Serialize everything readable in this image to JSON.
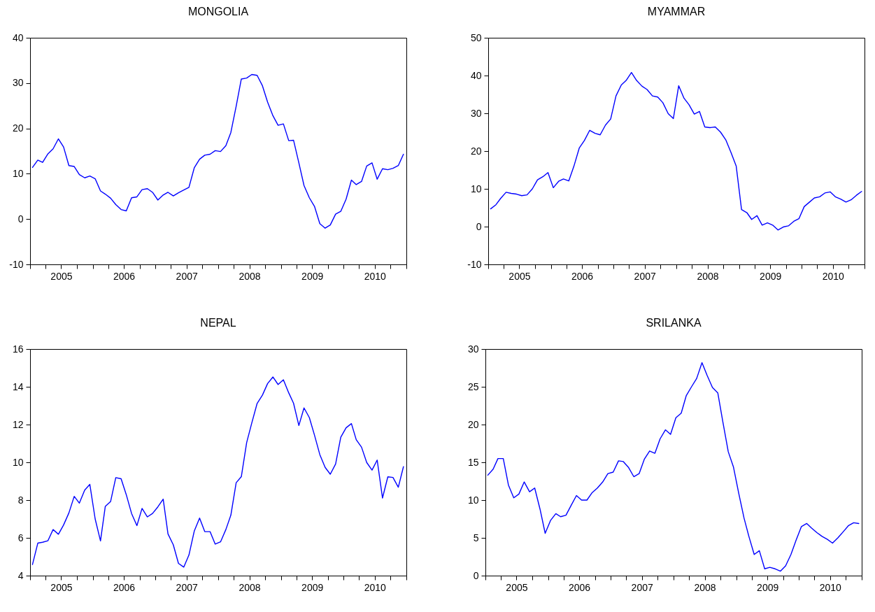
{
  "chart_data": [
    {
      "type": "line",
      "title": "MONGOLIA",
      "color": "#0000ff",
      "x": [
        "2005-01-15",
        "2005-02-15",
        "2005-03-15",
        "2005-04-15",
        "2005-05-15",
        "2005-06-15",
        "2005-07-15",
        "2005-08-15",
        "2005-09-15",
        "2005-10-15",
        "2005-11-15",
        "2005-12-15",
        "2006-01-15",
        "2006-02-15",
        "2006-03-15",
        "2006-04-15",
        "2006-05-15",
        "2006-06-15",
        "2006-07-15",
        "2006-08-15",
        "2006-09-15",
        "2006-10-15",
        "2006-11-15",
        "2006-12-15",
        "2007-01-15",
        "2007-02-15",
        "2007-03-15",
        "2007-04-15",
        "2007-05-15",
        "2007-06-15",
        "2007-07-15",
        "2007-08-15",
        "2007-09-15",
        "2007-10-15",
        "2007-11-15",
        "2007-12-15",
        "2008-01-15",
        "2008-02-15",
        "2008-03-15",
        "2008-04-15",
        "2008-05-15",
        "2008-06-15",
        "2008-07-15",
        "2008-08-15",
        "2008-09-15",
        "2008-10-15",
        "2008-11-15",
        "2008-12-15",
        "2009-01-15",
        "2009-02-15",
        "2009-03-15",
        "2009-04-15",
        "2009-05-15",
        "2009-06-15",
        "2009-07-15",
        "2009-08-15",
        "2009-09-15",
        "2009-10-15",
        "2009-11-15",
        "2009-12-15",
        "2010-01-15",
        "2010-02-15",
        "2010-03-15",
        "2010-04-15",
        "2010-05-15",
        "2010-06-15",
        "2010-07-15",
        "2010-08-15",
        "2010-09-15",
        "2010-10-15",
        "2010-11-15",
        "2010-12-15"
      ],
      "values": [
        11.4,
        13.0,
        12.5,
        14.4,
        15.5,
        17.7,
        15.9,
        11.8,
        11.6,
        9.8,
        9.1,
        9.5,
        8.9,
        6.2,
        5.5,
        4.6,
        3.2,
        2.1,
        1.8,
        4.7,
        4.9,
        6.5,
        6.7,
        5.9,
        4.2,
        5.3,
        5.9,
        5.1,
        5.8,
        6.4,
        7.0,
        11.3,
        13.2,
        14.1,
        14.3,
        15.1,
        14.9,
        16.2,
        19.1,
        24.9,
        30.9,
        31.1,
        31.9,
        31.7,
        29.4,
        25.8,
        22.8,
        20.7,
        21.0,
        17.3,
        17.4,
        12.4,
        7.4,
        4.7,
        2.8,
        -1.0,
        -2.0,
        -1.3,
        1.1,
        1.7,
        4.4,
        8.6,
        7.6,
        8.3,
        11.7,
        12.4,
        8.8,
        11.1,
        10.9,
        11.2,
        11.8,
        14.3
      ],
      "xlim": [
        "2005-01-01",
        "2011-01-01"
      ],
      "xticks": [
        {
          "value": "2005-01-01",
          "label": null
        },
        {
          "value": "2005-04-01",
          "label": null
        },
        {
          "value": "2005-07-01",
          "label": "2005"
        },
        {
          "value": "2005-10-01",
          "label": null
        },
        {
          "value": "2006-01-01",
          "label": null
        },
        {
          "value": "2006-04-01",
          "label": null
        },
        {
          "value": "2006-07-01",
          "label": "2006"
        },
        {
          "value": "2006-10-01",
          "label": null
        },
        {
          "value": "2007-01-01",
          "label": null
        },
        {
          "value": "2007-04-01",
          "label": null
        },
        {
          "value": "2007-07-01",
          "label": "2007"
        },
        {
          "value": "2007-10-01",
          "label": null
        },
        {
          "value": "2008-01-01",
          "label": null
        },
        {
          "value": "2008-04-01",
          "label": null
        },
        {
          "value": "2008-07-01",
          "label": "2008"
        },
        {
          "value": "2008-10-01",
          "label": null
        },
        {
          "value": "2009-01-01",
          "label": null
        },
        {
          "value": "2009-04-01",
          "label": null
        },
        {
          "value": "2009-07-01",
          "label": "2009"
        },
        {
          "value": "2009-10-01",
          "label": null
        },
        {
          "value": "2010-01-01",
          "label": null
        },
        {
          "value": "2010-04-01",
          "label": null
        },
        {
          "value": "2010-07-01",
          "label": "2010"
        },
        {
          "value": "2010-10-01",
          "label": null
        },
        {
          "value": "2011-01-01",
          "label": null
        }
      ],
      "ylim": [
        -10,
        40
      ],
      "yticks": [
        -10,
        0,
        10,
        20,
        30,
        40
      ]
    },
    {
      "type": "line",
      "title": "MYAMMAR",
      "color": "#0000ff",
      "x": [
        "2005-01-15",
        "2005-02-15",
        "2005-03-15",
        "2005-04-15",
        "2005-05-15",
        "2005-06-15",
        "2005-07-15",
        "2005-08-15",
        "2005-09-15",
        "2005-10-15",
        "2005-11-15",
        "2005-12-15",
        "2006-01-15",
        "2006-02-15",
        "2006-03-15",
        "2006-04-15",
        "2006-05-15",
        "2006-06-15",
        "2006-07-15",
        "2006-08-15",
        "2006-09-15",
        "2006-10-15",
        "2006-11-15",
        "2006-12-15",
        "2007-01-15",
        "2007-02-15",
        "2007-03-15",
        "2007-04-15",
        "2007-05-15",
        "2007-06-15",
        "2007-07-15",
        "2007-08-15",
        "2007-09-15",
        "2007-10-15",
        "2007-11-15",
        "2007-12-15",
        "2008-01-15",
        "2008-02-15",
        "2008-03-15",
        "2008-04-15",
        "2008-05-15",
        "2008-06-15",
        "2008-07-15",
        "2008-08-15",
        "2008-09-15",
        "2008-10-15",
        "2008-11-15",
        "2008-12-15",
        "2009-01-15",
        "2009-02-15",
        "2009-03-15",
        "2009-04-15",
        "2009-05-15",
        "2009-06-15",
        "2009-07-15",
        "2009-08-15",
        "2009-09-15",
        "2009-10-15",
        "2009-11-15",
        "2009-12-15",
        "2010-01-15",
        "2010-02-15",
        "2010-03-15",
        "2010-04-15",
        "2010-05-15",
        "2010-06-15",
        "2010-07-15",
        "2010-08-15",
        "2010-09-15",
        "2010-10-15",
        "2010-11-15",
        "2010-12-15"
      ],
      "values": [
        4.7,
        5.8,
        7.5,
        9.1,
        8.8,
        8.6,
        8.2,
        8.4,
        10.0,
        12.4,
        13.2,
        14.3,
        10.3,
        12.0,
        12.6,
        12.1,
        16.0,
        20.8,
        22.8,
        25.5,
        24.7,
        24.3,
        26.9,
        28.5,
        34.6,
        37.5,
        38.7,
        40.8,
        38.7,
        37.2,
        36.3,
        34.6,
        34.3,
        32.8,
        29.9,
        28.6,
        37.3,
        34.0,
        32.3,
        29.8,
        30.5,
        26.4,
        26.2,
        26.4,
        25.0,
        23.0,
        19.6,
        16.0,
        4.5,
        3.7,
        1.9,
        2.9,
        0.4,
        1.0,
        0.4,
        -0.9,
        -0.1,
        0.2,
        1.4,
        2.1,
        5.3,
        6.5,
        7.6,
        7.9,
        8.9,
        9.2,
        7.9,
        7.3,
        6.5,
        7.1,
        8.3,
        9.3
      ],
      "xlim": [
        "2005-01-01",
        "2011-01-01"
      ],
      "xticks": [
        {
          "value": "2005-01-01",
          "label": null
        },
        {
          "value": "2005-04-01",
          "label": null
        },
        {
          "value": "2005-07-01",
          "label": "2005"
        },
        {
          "value": "2005-10-01",
          "label": null
        },
        {
          "value": "2006-01-01",
          "label": null
        },
        {
          "value": "2006-04-01",
          "label": null
        },
        {
          "value": "2006-07-01",
          "label": "2006"
        },
        {
          "value": "2006-10-01",
          "label": null
        },
        {
          "value": "2007-01-01",
          "label": null
        },
        {
          "value": "2007-04-01",
          "label": null
        },
        {
          "value": "2007-07-01",
          "label": "2007"
        },
        {
          "value": "2007-10-01",
          "label": null
        },
        {
          "value": "2008-01-01",
          "label": null
        },
        {
          "value": "2008-04-01",
          "label": null
        },
        {
          "value": "2008-07-01",
          "label": "2008"
        },
        {
          "value": "2008-10-01",
          "label": null
        },
        {
          "value": "2009-01-01",
          "label": null
        },
        {
          "value": "2009-04-01",
          "label": null
        },
        {
          "value": "2009-07-01",
          "label": "2009"
        },
        {
          "value": "2009-10-01",
          "label": null
        },
        {
          "value": "2010-01-01",
          "label": null
        },
        {
          "value": "2010-04-01",
          "label": null
        },
        {
          "value": "2010-07-01",
          "label": "2010"
        },
        {
          "value": "2010-10-01",
          "label": null
        },
        {
          "value": "2011-01-01",
          "label": null
        }
      ],
      "ylim": [
        -10,
        50
      ],
      "yticks": [
        -10,
        0,
        10,
        20,
        30,
        40,
        50
      ]
    },
    {
      "type": "line",
      "title": "NEPAL",
      "color": "#0000ff",
      "x": [
        "2005-01-15",
        "2005-02-15",
        "2005-03-15",
        "2005-04-15",
        "2005-05-15",
        "2005-06-15",
        "2005-07-15",
        "2005-08-15",
        "2005-09-15",
        "2005-10-15",
        "2005-11-15",
        "2005-12-15",
        "2006-01-15",
        "2006-02-15",
        "2006-03-15",
        "2006-04-15",
        "2006-05-15",
        "2006-06-15",
        "2006-07-15",
        "2006-08-15",
        "2006-09-15",
        "2006-10-15",
        "2006-11-15",
        "2006-12-15",
        "2007-01-15",
        "2007-02-15",
        "2007-03-15",
        "2007-04-15",
        "2007-05-15",
        "2007-06-15",
        "2007-07-15",
        "2007-08-15",
        "2007-09-15",
        "2007-10-15",
        "2007-11-15",
        "2007-12-15",
        "2008-01-15",
        "2008-02-15",
        "2008-03-15",
        "2008-04-15",
        "2008-05-15",
        "2008-06-15",
        "2008-07-15",
        "2008-08-15",
        "2008-09-15",
        "2008-10-15",
        "2008-11-15",
        "2008-12-15",
        "2009-01-15",
        "2009-02-15",
        "2009-03-15",
        "2009-04-15",
        "2009-05-15",
        "2009-06-15",
        "2009-07-15",
        "2009-08-15",
        "2009-09-15",
        "2009-10-15",
        "2009-11-15",
        "2009-12-15",
        "2010-01-15",
        "2010-02-15",
        "2010-03-15",
        "2010-04-15",
        "2010-05-15",
        "2010-06-15",
        "2010-07-15",
        "2010-08-15",
        "2010-09-15",
        "2010-10-15",
        "2010-11-15",
        "2010-12-15"
      ],
      "values": [
        4.59,
        5.72,
        5.77,
        5.85,
        6.44,
        6.19,
        6.68,
        7.32,
        8.2,
        7.84,
        8.53,
        8.83,
        7.0,
        5.84,
        7.67,
        7.93,
        9.19,
        9.13,
        8.29,
        7.29,
        6.65,
        7.56,
        7.11,
        7.29,
        7.64,
        8.05,
        6.21,
        5.63,
        4.65,
        4.45,
        5.09,
        6.36,
        7.05,
        6.33,
        6.33,
        5.67,
        5.79,
        6.44,
        7.2,
        8.92,
        9.24,
        11.04,
        12.09,
        13.12,
        13.56,
        14.17,
        14.52,
        14.12,
        14.37,
        13.68,
        13.13,
        11.95,
        12.88,
        12.37,
        11.44,
        10.41,
        9.73,
        9.37,
        9.91,
        11.33,
        11.83,
        12.05,
        11.2,
        10.8,
        9.99,
        9.59,
        10.12,
        8.11,
        9.23,
        9.2,
        8.68,
        9.77
      ],
      "xlim": [
        "2005-01-01",
        "2011-01-01"
      ],
      "xticks": [
        {
          "value": "2005-01-01",
          "label": null
        },
        {
          "value": "2005-04-01",
          "label": null
        },
        {
          "value": "2005-07-01",
          "label": "2005"
        },
        {
          "value": "2005-10-01",
          "label": null
        },
        {
          "value": "2006-01-01",
          "label": null
        },
        {
          "value": "2006-04-01",
          "label": null
        },
        {
          "value": "2006-07-01",
          "label": "2006"
        },
        {
          "value": "2006-10-01",
          "label": null
        },
        {
          "value": "2007-01-01",
          "label": null
        },
        {
          "value": "2007-04-01",
          "label": null
        },
        {
          "value": "2007-07-01",
          "label": "2007"
        },
        {
          "value": "2007-10-01",
          "label": null
        },
        {
          "value": "2008-01-01",
          "label": null
        },
        {
          "value": "2008-04-01",
          "label": null
        },
        {
          "value": "2008-07-01",
          "label": "2008"
        },
        {
          "value": "2008-10-01",
          "label": null
        },
        {
          "value": "2009-01-01",
          "label": null
        },
        {
          "value": "2009-04-01",
          "label": null
        },
        {
          "value": "2009-07-01",
          "label": "2009"
        },
        {
          "value": "2009-10-01",
          "label": null
        },
        {
          "value": "2010-01-01",
          "label": null
        },
        {
          "value": "2010-04-01",
          "label": null
        },
        {
          "value": "2010-07-01",
          "label": "2010"
        },
        {
          "value": "2010-10-01",
          "label": null
        },
        {
          "value": "2011-01-01",
          "label": null
        }
      ],
      "ylim": [
        4,
        16
      ],
      "yticks": [
        4,
        6,
        8,
        10,
        12,
        14,
        16
      ]
    },
    {
      "type": "line",
      "title": "SRILANKA",
      "color": "#0000ff",
      "x": [
        "2005-01-15",
        "2005-02-15",
        "2005-03-15",
        "2005-04-15",
        "2005-05-15",
        "2005-06-15",
        "2005-07-15",
        "2005-08-15",
        "2005-09-15",
        "2005-10-15",
        "2005-11-15",
        "2005-12-15",
        "2006-01-15",
        "2006-02-15",
        "2006-03-15",
        "2006-04-15",
        "2006-05-15",
        "2006-06-15",
        "2006-07-15",
        "2006-08-15",
        "2006-09-15",
        "2006-10-15",
        "2006-11-15",
        "2006-12-15",
        "2007-01-15",
        "2007-02-15",
        "2007-03-15",
        "2007-04-15",
        "2007-05-15",
        "2007-06-15",
        "2007-07-15",
        "2007-08-15",
        "2007-09-15",
        "2007-10-15",
        "2007-11-15",
        "2007-12-15",
        "2008-01-15",
        "2008-02-15",
        "2008-03-15",
        "2008-04-15",
        "2008-05-15",
        "2008-06-15",
        "2008-07-15",
        "2008-08-15",
        "2008-09-15",
        "2008-10-15",
        "2008-11-15",
        "2008-12-15",
        "2009-01-15",
        "2009-02-15",
        "2009-03-15",
        "2009-04-15",
        "2009-05-15",
        "2009-06-15",
        "2009-07-15",
        "2009-08-15",
        "2009-09-15",
        "2009-10-15",
        "2009-11-15",
        "2009-12-15",
        "2010-01-15",
        "2010-02-15",
        "2010-03-15",
        "2010-04-15",
        "2010-05-15",
        "2010-06-15",
        "2010-07-15",
        "2010-08-15",
        "2010-09-15",
        "2010-10-15",
        "2010-11-15",
        "2010-12-15"
      ],
      "values": [
        13.3,
        14.1,
        15.5,
        15.5,
        12.0,
        10.3,
        10.8,
        12.4,
        11.1,
        11.6,
        8.8,
        5.6,
        7.3,
        8.2,
        7.8,
        8.0,
        9.3,
        10.6,
        10.0,
        10.0,
        11.0,
        11.6,
        12.4,
        13.5,
        13.7,
        15.2,
        15.1,
        14.3,
        13.1,
        13.5,
        15.4,
        16.5,
        16.2,
        18.1,
        19.3,
        18.7,
        20.9,
        21.5,
        23.8,
        25.0,
        26.1,
        28.2,
        26.5,
        24.9,
        24.2,
        20.3,
        16.4,
        14.4,
        10.9,
        7.6,
        5.2,
        2.8,
        3.3,
        0.9,
        1.1,
        0.9,
        0.6,
        1.3,
        2.8,
        4.7,
        6.5,
        6.9,
        6.3,
        5.7,
        5.2,
        4.8,
        4.3,
        5.0,
        5.8,
        6.6,
        7.0,
        6.9
      ],
      "xlim": [
        "2005-01-01",
        "2011-01-01"
      ],
      "xticks": [
        {
          "value": "2005-01-01",
          "label": null
        },
        {
          "value": "2005-04-01",
          "label": null
        },
        {
          "value": "2005-07-01",
          "label": "2005"
        },
        {
          "value": "2005-10-01",
          "label": null
        },
        {
          "value": "2006-01-01",
          "label": null
        },
        {
          "value": "2006-04-01",
          "label": null
        },
        {
          "value": "2006-07-01",
          "label": "2006"
        },
        {
          "value": "2006-10-01",
          "label": null
        },
        {
          "value": "2007-01-01",
          "label": null
        },
        {
          "value": "2007-04-01",
          "label": null
        },
        {
          "value": "2007-07-01",
          "label": "2007"
        },
        {
          "value": "2007-10-01",
          "label": null
        },
        {
          "value": "2008-01-01",
          "label": null
        },
        {
          "value": "2008-04-01",
          "label": null
        },
        {
          "value": "2008-07-01",
          "label": "2008"
        },
        {
          "value": "2008-10-01",
          "label": null
        },
        {
          "value": "2009-01-01",
          "label": null
        },
        {
          "value": "2009-04-01",
          "label": null
        },
        {
          "value": "2009-07-01",
          "label": "2009"
        },
        {
          "value": "2009-10-01",
          "label": null
        },
        {
          "value": "2010-01-01",
          "label": null
        },
        {
          "value": "2010-04-01",
          "label": null
        },
        {
          "value": "2010-07-01",
          "label": "2010"
        },
        {
          "value": "2010-10-01",
          "label": null
        },
        {
          "value": "2011-01-01",
          "label": null
        }
      ],
      "ylim": [
        0,
        30
      ],
      "yticks": [
        0,
        5,
        10,
        15,
        20,
        25,
        30
      ]
    }
  ]
}
